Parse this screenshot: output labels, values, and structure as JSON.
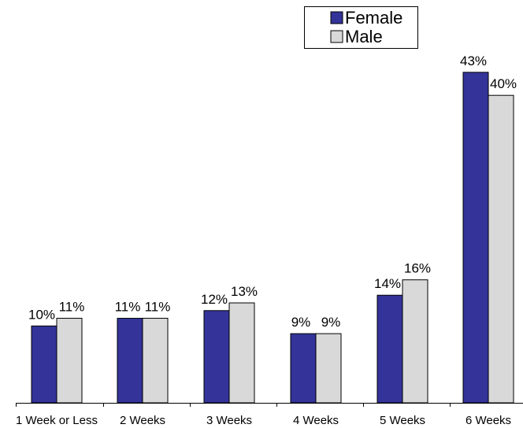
{
  "chart_data": {
    "type": "bar",
    "title": "",
    "xlabel": "",
    "ylabel": "",
    "categories": [
      "1 Week or Less",
      "2 Weeks",
      "3 Weeks",
      "4 Weeks",
      "5 Weeks",
      "6 Weeks"
    ],
    "series": [
      {
        "name": "Female",
        "color": "#333399",
        "values": [
          10,
          11,
          12,
          9,
          14,
          43
        ],
        "labels": [
          "10%",
          "11%",
          "12%",
          "9%",
          "14%",
          "43%"
        ]
      },
      {
        "name": "Male",
        "color": "#d9d9d9",
        "values": [
          11,
          11,
          13,
          9,
          16,
          40
        ],
        "labels": [
          "11%",
          "11%",
          "13%",
          "9%",
          "16%",
          "40%"
        ]
      }
    ],
    "ylim": [
      0,
      45
    ],
    "grid": false,
    "legend_position": "top-right"
  }
}
